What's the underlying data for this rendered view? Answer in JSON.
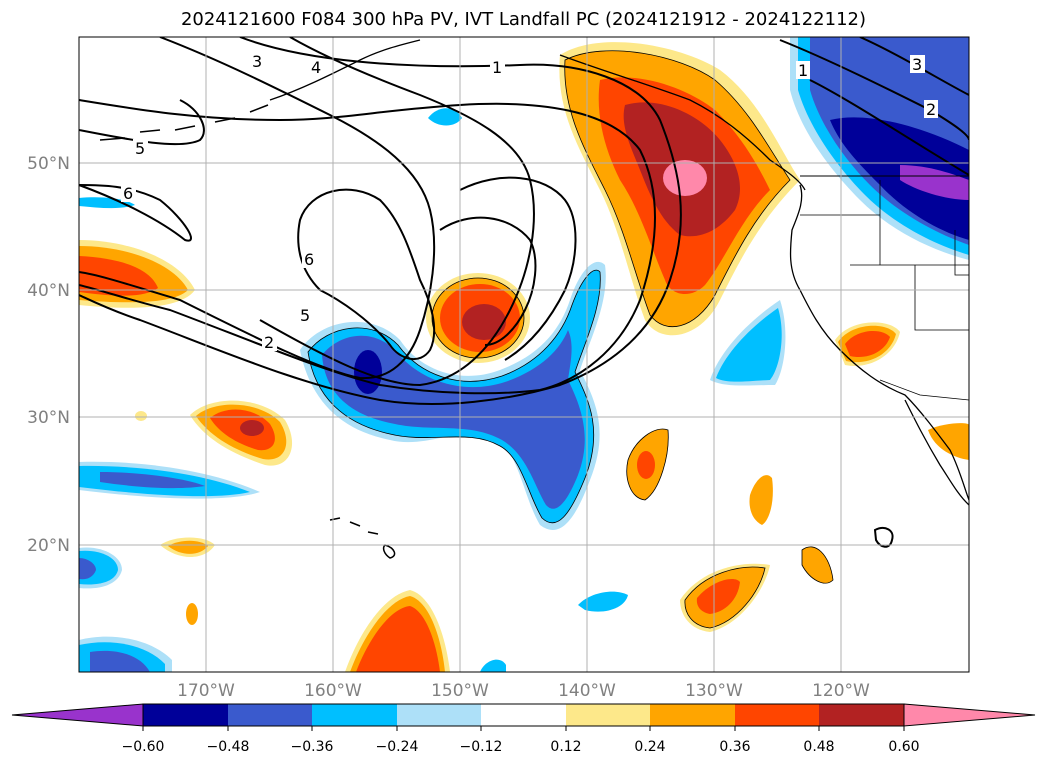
{
  "title": "2024121600 F084 300 hPa PV, IVT Landfall PC (2024121912 - 2024122112)",
  "map": {
    "lon_range": [
      -180,
      -110
    ],
    "lat_range": [
      10,
      60
    ],
    "lat_ticks": [
      {
        "value": 50,
        "label": "50°N"
      },
      {
        "value": 40,
        "label": "40°N"
      },
      {
        "value": 30,
        "label": "30°N"
      },
      {
        "value": 20,
        "label": "20°N"
      }
    ],
    "lon_ticks": [
      {
        "value": -170,
        "label": "170°W"
      },
      {
        "value": -160,
        "label": "160°W"
      },
      {
        "value": -150,
        "label": "150°W"
      },
      {
        "value": -140,
        "label": "140°W"
      },
      {
        "value": -130,
        "label": "130°W"
      },
      {
        "value": -120,
        "label": "120°W"
      }
    ],
    "grid": true,
    "pv_contour_labels": [
      "1",
      "2",
      "3",
      "4",
      "5",
      "6"
    ]
  },
  "colorbar": {
    "colors": [
      "#9933cc",
      "#000099",
      "#3a5acd",
      "#00bfff",
      "#ade0f8",
      "#ffffff",
      "#fde88a",
      "#ffa500",
      "#ff4500",
      "#b22222",
      "#ff88aa"
    ],
    "ticks": [
      "−0.60",
      "−0.48",
      "−0.36",
      "−0.24",
      "−0.12",
      "0.12",
      "0.24",
      "0.36",
      "0.48",
      "0.60"
    ]
  }
}
